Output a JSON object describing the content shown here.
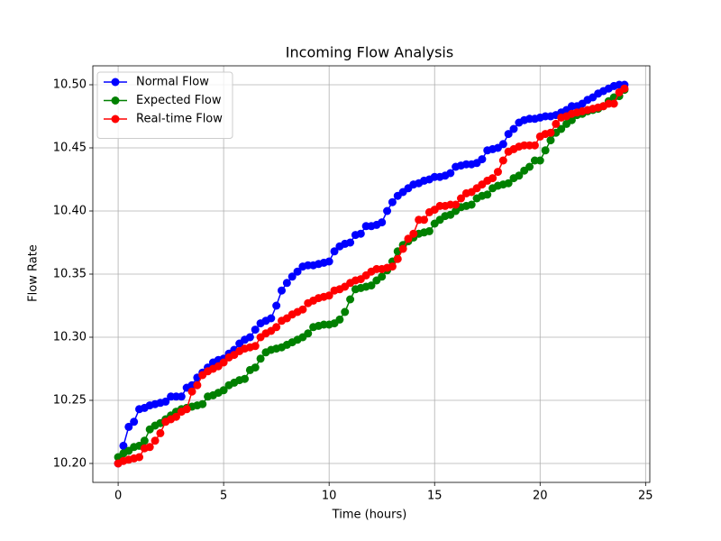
{
  "chart_data": {
    "type": "line",
    "title": "Incoming Flow Analysis",
    "x_label": "Time (hours)",
    "y_label": "Flow Rate",
    "x": [
      0,
      0.25,
      0.5,
      0.75,
      1,
      1.25,
      1.5,
      1.75,
      2,
      2.25,
      2.5,
      2.75,
      3,
      3.25,
      3.5,
      3.75,
      4,
      4.25,
      4.5,
      4.75,
      5,
      5.25,
      5.5,
      5.75,
      6,
      6.25,
      6.5,
      6.75,
      7,
      7.25,
      7.5,
      7.75,
      8,
      8.25,
      8.5,
      8.75,
      9,
      9.25,
      9.5,
      9.75,
      10,
      10.25,
      10.5,
      10.75,
      11,
      11.25,
      11.5,
      11.75,
      12,
      12.25,
      12.5,
      12.75,
      13,
      13.25,
      13.5,
      13.75,
      14,
      14.25,
      14.5,
      14.75,
      15,
      15.25,
      15.5,
      15.75,
      16,
      16.25,
      16.5,
      16.75,
      17,
      17.25,
      17.5,
      17.75,
      18,
      18.25,
      18.5,
      18.75,
      19,
      19.25,
      19.5,
      19.75,
      20,
      20.25,
      20.5,
      20.75,
      21,
      21.25,
      21.5,
      21.75,
      22,
      22.25,
      22.5,
      22.75,
      23,
      23.25,
      23.5,
      23.75,
      24
    ],
    "series": [
      {
        "name": "Normal Flow",
        "color": "#0000ff",
        "values": [
          10.2,
          10.214,
          10.229,
          10.233,
          10.243,
          10.244,
          10.246,
          10.247,
          10.248,
          10.249,
          10.253,
          10.253,
          10.253,
          10.26,
          10.262,
          10.268,
          10.272,
          10.276,
          10.28,
          10.282,
          10.283,
          10.287,
          10.29,
          10.295,
          10.298,
          10.3,
          10.306,
          10.311,
          10.313,
          10.315,
          10.325,
          10.337,
          10.343,
          10.348,
          10.352,
          10.356,
          10.357,
          10.357,
          10.358,
          10.359,
          10.36,
          10.368,
          10.372,
          10.374,
          10.375,
          10.381,
          10.382,
          10.388,
          10.388,
          10.389,
          10.391,
          10.4,
          10.407,
          10.412,
          10.415,
          10.418,
          10.421,
          10.422,
          10.424,
          10.425,
          10.427,
          10.427,
          10.428,
          10.43,
          10.435,
          10.436,
          10.437,
          10.437,
          10.438,
          10.441,
          10.448,
          10.449,
          10.45,
          10.453,
          10.461,
          10.465,
          10.47,
          10.472,
          10.473,
          10.473,
          10.474,
          10.475,
          10.475,
          10.476,
          10.478,
          10.48,
          10.483,
          10.483,
          10.485,
          10.488,
          10.49,
          10.493,
          10.495,
          10.497,
          10.499,
          10.5,
          10.5
        ]
      },
      {
        "name": "Expected Flow",
        "color": "#008000",
        "values": [
          10.205,
          10.208,
          10.21,
          10.213,
          10.214,
          10.218,
          10.227,
          10.23,
          10.232,
          10.235,
          10.238,
          10.241,
          10.243,
          10.244,
          10.245,
          10.246,
          10.247,
          10.253,
          10.254,
          10.256,
          10.258,
          10.262,
          10.264,
          10.266,
          10.267,
          10.274,
          10.276,
          10.283,
          10.288,
          10.29,
          10.291,
          10.292,
          10.294,
          10.296,
          10.298,
          10.3,
          10.303,
          10.308,
          10.309,
          10.31,
          10.31,
          10.311,
          10.314,
          10.32,
          10.33,
          10.338,
          10.339,
          10.34,
          10.341,
          10.345,
          10.348,
          10.353,
          10.36,
          10.368,
          10.373,
          10.376,
          10.379,
          10.382,
          10.383,
          10.384,
          10.39,
          10.393,
          10.396,
          10.397,
          10.4,
          10.403,
          10.404,
          10.405,
          10.41,
          10.412,
          10.413,
          10.418,
          10.42,
          10.421,
          10.422,
          10.426,
          10.428,
          10.432,
          10.435,
          10.44,
          10.44,
          10.448,
          10.456,
          10.462,
          10.465,
          10.469,
          10.472,
          10.476,
          10.477,
          10.479,
          10.48,
          10.481,
          10.483,
          10.487,
          10.49,
          10.491,
          10.496
        ]
      },
      {
        "name": "Real-time Flow",
        "color": "#ff0000",
        "values": [
          10.2,
          10.202,
          10.203,
          10.204,
          10.205,
          10.212,
          10.213,
          10.218,
          10.224,
          10.233,
          10.235,
          10.237,
          10.241,
          10.243,
          10.257,
          10.262,
          10.27,
          10.273,
          10.275,
          10.277,
          10.28,
          10.284,
          10.286,
          10.289,
          10.291,
          10.292,
          10.293,
          10.3,
          10.303,
          10.305,
          10.308,
          10.313,
          10.315,
          10.318,
          10.32,
          10.322,
          10.327,
          10.329,
          10.331,
          10.332,
          10.333,
          10.337,
          10.338,
          10.34,
          10.343,
          10.345,
          10.346,
          10.349,
          10.352,
          10.354,
          10.354,
          10.355,
          10.356,
          10.362,
          10.37,
          10.378,
          10.382,
          10.393,
          10.393,
          10.399,
          10.401,
          10.404,
          10.404,
          10.405,
          10.405,
          10.41,
          10.414,
          10.415,
          10.418,
          10.421,
          10.424,
          10.426,
          10.431,
          10.44,
          10.447,
          10.449,
          10.451,
          10.452,
          10.452,
          10.452,
          10.459,
          10.461,
          10.462,
          10.469,
          10.474,
          10.475,
          10.477,
          10.478,
          10.479,
          10.48,
          10.481,
          10.482,
          10.483,
          10.485,
          10.485,
          10.494,
          10.497
        ]
      }
    ],
    "xlim": [
      -1.2,
      25.2
    ],
    "ylim": [
      10.185,
      10.515
    ],
    "xticks": [
      0,
      5,
      10,
      15,
      20,
      25
    ],
    "yticks": [
      {
        "value": 10.2,
        "label": "10.20"
      },
      10.25,
      {
        "value": 10.3,
        "label": "10.30"
      },
      10.35,
      {
        "value": 10.4,
        "label": "10.40"
      },
      10.45,
      {
        "value": 10.5,
        "label": "10.50"
      }
    ],
    "grid": true,
    "legend": "upper-left"
  }
}
